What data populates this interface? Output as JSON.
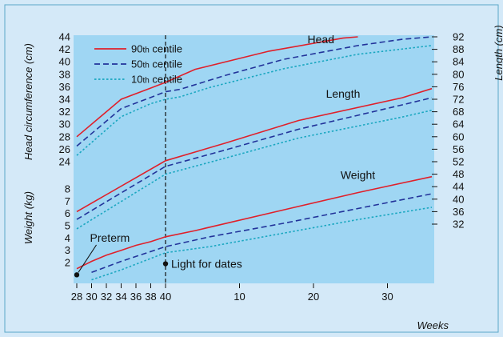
{
  "chart_data": {
    "type": "line",
    "colors": {
      "outer_bg": "#d4e9f8",
      "plot_bg": "#9fd6f3",
      "frame": "#5aa8c8",
      "c90": "#e0202a",
      "c50": "#22339a",
      "c10": "#1aa7c0",
      "marker": "#111111"
    },
    "legend": {
      "placement": "top-left",
      "items": [
        {
          "key": "c90",
          "num": "90",
          "suffix": "th",
          "word": "centile",
          "dash": "solid"
        },
        {
          "key": "c50",
          "num": "50",
          "suffix": "th",
          "word": "centile",
          "dash": "dash"
        },
        {
          "key": "c10",
          "num": "10",
          "suffix": "th",
          "word": "centile",
          "dash": "dot"
        }
      ]
    },
    "x_axis": {
      "label": "Weeks",
      "tick_labels": [
        "28",
        "30",
        "32",
        "34",
        "36",
        "38",
        "40",
        "10",
        "20",
        "30"
      ],
      "reference_line_at": "40"
    },
    "y_left_head": {
      "label": "Head circumference (cm)",
      "ticks": [
        24,
        26,
        28,
        30,
        32,
        34,
        36,
        38,
        40,
        42,
        44
      ]
    },
    "y_left_weight": {
      "label": "Weight (kg)",
      "ticks": [
        2,
        3,
        4,
        5,
        6,
        7,
        8
      ]
    },
    "y_right_length": {
      "label": "Length (cm)",
      "ticks": [
        32,
        36,
        40,
        44,
        48,
        52,
        56,
        60,
        64,
        68,
        72,
        76,
        80,
        84,
        88,
        92
      ]
    },
    "groups": [
      {
        "name": "Head",
        "scale": "head",
        "series": [
          {
            "centile": "c90",
            "points": [
              [
                28,
                28.0
              ],
              [
                34,
                34.0
              ],
              [
                38,
                35.8
              ],
              [
                40,
                36.7
              ],
              [
                44,
                38.8
              ],
              [
                54,
                41.7
              ],
              [
                64,
                43.8
              ],
              [
                66,
                44.0
              ]
            ]
          },
          {
            "centile": "c50",
            "points": [
              [
                28,
                26.5
              ],
              [
                34,
                32.5
              ],
              [
                38,
                34.3
              ],
              [
                40,
                35.2
              ],
              [
                42,
                35.6
              ],
              [
                48,
                37.8
              ],
              [
                56,
                40.4
              ],
              [
                66,
                42.6
              ],
              [
                72,
                43.6
              ],
              [
                76,
                44.0
              ]
            ]
          },
          {
            "centile": "c10",
            "points": [
              [
                28,
                25.0
              ],
              [
                34,
                31.2
              ],
              [
                38,
                33.3
              ],
              [
                40,
                34.0
              ],
              [
                42,
                34.4
              ],
              [
                46,
                35.9
              ],
              [
                56,
                38.9
              ],
              [
                66,
                41.2
              ],
              [
                76,
                42.6
              ]
            ]
          }
        ]
      },
      {
        "name": "Length",
        "scale": "length",
        "series": [
          {
            "centile": "c90",
            "points": [
              [
                28,
                36.0
              ],
              [
                40,
                52.3
              ],
              [
                48,
                57.9
              ],
              [
                58,
                65.2
              ],
              [
                72,
                72.5
              ],
              [
                76,
                75.4
              ]
            ]
          },
          {
            "centile": "c50",
            "points": [
              [
                28,
                33.5
              ],
              [
                40,
                50.5
              ],
              [
                48,
                55.7
              ],
              [
                58,
                62.4
              ],
              [
                72,
                70.2
              ],
              [
                76,
                72.5
              ]
            ]
          },
          {
            "centile": "c10",
            "points": [
              [
                28,
                30.5
              ],
              [
                40,
                48.0
              ],
              [
                48,
                53.1
              ],
              [
                58,
                59.6
              ],
              [
                72,
                66.3
              ],
              [
                76,
                68.5
              ]
            ]
          }
        ]
      },
      {
        "name": "Weight",
        "scale": "weight",
        "series": [
          {
            "centile": "c90",
            "points": [
              [
                28,
                1.5
              ],
              [
                30,
                2.1
              ],
              [
                32,
                2.6
              ],
              [
                34,
                3.0
              ],
              [
                36,
                3.4
              ],
              [
                38,
                3.7
              ],
              [
                40,
                4.1
              ],
              [
                44,
                4.6
              ],
              [
                56,
                6.3
              ],
              [
                66,
                7.7
              ],
              [
                76,
                9.0
              ]
            ]
          },
          {
            "centile": "c50",
            "points": [
              [
                30,
                1.2
              ],
              [
                34,
                2.1
              ],
              [
                40,
                3.3
              ],
              [
                46,
                4.1
              ],
              [
                56,
                5.2
              ],
              [
                66,
                6.4
              ],
              [
                76,
                7.6
              ]
            ]
          },
          {
            "centile": "c10",
            "points": [
              [
                30,
                0.6
              ],
              [
                34,
                1.4
              ],
              [
                40,
                2.8
              ],
              [
                46,
                3.3
              ],
              [
                56,
                4.4
              ],
              [
                66,
                5.5
              ],
              [
                76,
                6.5
              ]
            ]
          }
        ]
      }
    ],
    "annotations": [
      {
        "text": "Preterm",
        "point_week": 28,
        "point_kg": 1.0,
        "label_week": 31.3,
        "label_kg": 3.7
      },
      {
        "text": "Light for dates",
        "point_week": 40,
        "point_kg": 1.9,
        "label_week": 40.6,
        "label_kg": 1.9
      }
    ]
  }
}
